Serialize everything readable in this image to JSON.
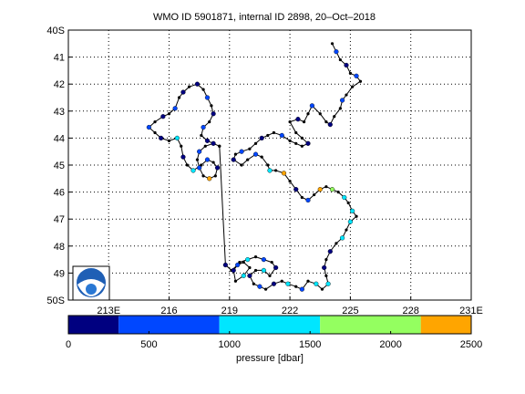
{
  "title": "WMO ID 5901871, internal ID 2898, 20–Oct–2018",
  "chart_data": {
    "type": "scatter",
    "subtype": "float-trajectory-map",
    "title": "WMO ID 5901871, internal ID 2898, 20–Oct–2018",
    "xlim": [
      211,
      231
    ],
    "ylim": [
      -50,
      -40
    ],
    "x_ticks": [
      213,
      216,
      219,
      222,
      225,
      228,
      231
    ],
    "x_tick_labels": [
      "213E",
      "216",
      "219",
      "222",
      "225",
      "228",
      "231E"
    ],
    "y_ticks": [
      -40,
      -41,
      -42,
      -43,
      -44,
      -45,
      -46,
      -47,
      -48,
      -49,
      -50
    ],
    "y_tick_labels": [
      "40S",
      "41",
      "42",
      "43",
      "44",
      "45",
      "46",
      "47",
      "48",
      "49",
      "50S"
    ],
    "grid": true,
    "logo": "noaa-logo",
    "logo_placement": "bottom-left",
    "line_color": "#000000",
    "colorbar": {
      "label": "pressure [dbar]",
      "ticks": [
        0,
        500,
        1000,
        1500,
        2000,
        2500
      ],
      "tick_labels": [
        "0",
        "500",
        "1000",
        "1500",
        "2000",
        "2500"
      ],
      "bins": [
        {
          "min": 0,
          "max": 312,
          "color": "#000080"
        },
        {
          "min": 312,
          "max": 937,
          "color": "#0047ff"
        },
        {
          "min": 937,
          "max": 1562,
          "color": "#00e6ff"
        },
        {
          "min": 1562,
          "max": 2187,
          "color": "#94ff60"
        },
        {
          "min": 2187,
          "max": 2500,
          "color": "#ffa500"
        }
      ]
    },
    "track": [
      [
        224.1,
        -40.5
      ],
      [
        224.3,
        -40.8
      ],
      [
        224.5,
        -41.1
      ],
      [
        224.8,
        -41.3
      ],
      [
        225.0,
        -41.6
      ],
      [
        225.3,
        -41.7
      ],
      [
        225.5,
        -41.9
      ],
      [
        225.1,
        -42.1
      ],
      [
        224.8,
        -42.4
      ],
      [
        224.6,
        -42.6
      ],
      [
        224.5,
        -42.9
      ],
      [
        224.2,
        -43.2
      ],
      [
        224.0,
        -43.5
      ],
      [
        223.8,
        -43.4
      ],
      [
        223.5,
        -43.1
      ],
      [
        223.1,
        -42.8
      ],
      [
        222.9,
        -43.1
      ],
      [
        222.7,
        -43.4
      ],
      [
        222.4,
        -43.3
      ],
      [
        222.0,
        -43.4
      ],
      [
        222.3,
        -43.8
      ],
      [
        222.6,
        -44.0
      ],
      [
        222.9,
        -44.2
      ],
      [
        222.6,
        -44.3
      ],
      [
        222.3,
        -44.2
      ],
      [
        222.0,
        -44.1
      ],
      [
        221.6,
        -43.9
      ],
      [
        221.2,
        -43.8
      ],
      [
        220.9,
        -43.9
      ],
      [
        220.6,
        -44.0
      ],
      [
        220.3,
        -44.2
      ],
      [
        220.0,
        -44.4
      ],
      [
        219.6,
        -44.5
      ],
      [
        219.3,
        -44.6
      ],
      [
        219.2,
        -44.8
      ],
      [
        219.6,
        -45.0
      ],
      [
        219.9,
        -44.8
      ],
      [
        220.3,
        -44.6
      ],
      [
        220.6,
        -44.7
      ],
      [
        220.9,
        -45.0
      ],
      [
        221.0,
        -45.2
      ],
      [
        221.3,
        -45.2
      ],
      [
        221.7,
        -45.3
      ],
      [
        222.0,
        -45.6
      ],
      [
        222.3,
        -45.9
      ],
      [
        222.6,
        -46.2
      ],
      [
        222.9,
        -46.3
      ],
      [
        223.2,
        -46.1
      ],
      [
        223.5,
        -45.9
      ],
      [
        223.8,
        -45.8
      ],
      [
        224.1,
        -45.9
      ],
      [
        224.4,
        -46.0
      ],
      [
        224.7,
        -46.2
      ],
      [
        224.9,
        -46.4
      ],
      [
        225.1,
        -46.7
      ],
      [
        225.3,
        -46.9
      ],
      [
        225.0,
        -47.1
      ],
      [
        224.8,
        -47.4
      ],
      [
        224.6,
        -47.7
      ],
      [
        224.3,
        -47.9
      ],
      [
        224.0,
        -48.2
      ],
      [
        223.8,
        -48.5
      ],
      [
        223.7,
        -48.8
      ],
      [
        223.8,
        -49.1
      ],
      [
        223.9,
        -49.4
      ],
      [
        223.6,
        -49.6
      ],
      [
        223.3,
        -49.4
      ],
      [
        222.9,
        -49.3
      ],
      [
        222.6,
        -49.6
      ],
      [
        222.3,
        -49.5
      ],
      [
        221.9,
        -49.4
      ],
      [
        221.6,
        -49.3
      ],
      [
        221.2,
        -49.4
      ],
      [
        220.8,
        -49.6
      ],
      [
        220.5,
        -49.5
      ],
      [
        220.2,
        -49.4
      ],
      [
        220.0,
        -49.1
      ],
      [
        220.3,
        -48.9
      ],
      [
        220.7,
        -48.9
      ],
      [
        221.0,
        -49.1
      ],
      [
        221.3,
        -48.8
      ],
      [
        221.1,
        -48.6
      ],
      [
        220.7,
        -48.5
      ],
      [
        220.3,
        -48.4
      ],
      [
        219.9,
        -48.5
      ],
      [
        219.5,
        -48.6
      ],
      [
        219.2,
        -48.9
      ],
      [
        219.3,
        -49.3
      ],
      [
        219.7,
        -49.1
      ],
      [
        220.0,
        -48.8
      ],
      [
        219.7,
        -48.6
      ],
      [
        219.4,
        -48.7
      ],
      [
        219.1,
        -48.9
      ],
      [
        218.8,
        -48.7
      ],
      [
        218.5,
        -44.3
      ],
      [
        218.2,
        -44.2
      ],
      [
        217.8,
        -44.3
      ],
      [
        217.5,
        -44.5
      ],
      [
        217.4,
        -44.8
      ],
      [
        217.5,
        -45.1
      ],
      [
        217.7,
        -45.4
      ],
      [
        218.0,
        -45.5
      ],
      [
        218.3,
        -45.4
      ],
      [
        218.4,
        -45.1
      ],
      [
        218.2,
        -44.9
      ],
      [
        217.9,
        -44.8
      ],
      [
        217.6,
        -45.0
      ],
      [
        217.2,
        -45.2
      ],
      [
        216.9,
        -45.0
      ],
      [
        216.7,
        -44.7
      ],
      [
        216.6,
        -44.3
      ],
      [
        216.4,
        -44.0
      ],
      [
        216.0,
        -44.1
      ],
      [
        215.6,
        -44.0
      ],
      [
        215.3,
        -43.8
      ],
      [
        215.0,
        -43.6
      ],
      [
        215.3,
        -43.4
      ],
      [
        215.7,
        -43.2
      ],
      [
        216.0,
        -43.1
      ],
      [
        216.3,
        -42.9
      ],
      [
        216.5,
        -42.5
      ],
      [
        216.7,
        -42.3
      ],
      [
        217.0,
        -42.1
      ],
      [
        217.4,
        -42.0
      ],
      [
        217.7,
        -42.2
      ],
      [
        217.9,
        -42.5
      ],
      [
        218.1,
        -42.8
      ],
      [
        218.2,
        -43.1
      ],
      [
        218.0,
        -43.4
      ],
      [
        217.7,
        -43.6
      ],
      [
        217.6,
        -43.9
      ],
      [
        217.9,
        -44.1
      ],
      [
        218.2,
        -44.2
      ],
      [
        218.5,
        -44.3
      ]
    ],
    "points": [
      [
        224.3,
        -40.8,
        800
      ],
      [
        224.8,
        -41.3,
        200
      ],
      [
        225.3,
        -41.7,
        600
      ],
      [
        224.6,
        -42.6,
        800
      ],
      [
        224.0,
        -43.5,
        100
      ],
      [
        223.1,
        -42.8,
        700
      ],
      [
        222.4,
        -43.3,
        200
      ],
      [
        222.9,
        -44.2,
        100
      ],
      [
        221.6,
        -43.9,
        900
      ],
      [
        220.6,
        -44.0,
        100
      ],
      [
        219.6,
        -44.5,
        700
      ],
      [
        219.2,
        -44.8,
        100
      ],
      [
        220.3,
        -44.6,
        800
      ],
      [
        221.0,
        -45.2,
        1200
      ],
      [
        221.7,
        -45.3,
        2300
      ],
      [
        222.3,
        -45.9,
        100
      ],
      [
        222.9,
        -46.3,
        800
      ],
      [
        223.5,
        -45.9,
        2300
      ],
      [
        224.1,
        -45.9,
        1800
      ],
      [
        224.7,
        -46.2,
        1200
      ],
      [
        225.1,
        -46.7,
        1300
      ],
      [
        225.0,
        -47.1,
        1200
      ],
      [
        224.6,
        -47.7,
        1300
      ],
      [
        224.0,
        -48.2,
        100
      ],
      [
        223.7,
        -48.8,
        100
      ],
      [
        223.9,
        -49.4,
        1200
      ],
      [
        223.3,
        -49.4,
        1200
      ],
      [
        222.6,
        -49.6,
        800
      ],
      [
        221.9,
        -49.4,
        1200
      ],
      [
        221.2,
        -49.4,
        100
      ],
      [
        220.5,
        -49.5,
        800
      ],
      [
        220.0,
        -49.1,
        100
      ],
      [
        220.7,
        -48.9,
        1200
      ],
      [
        221.3,
        -48.8,
        100
      ],
      [
        220.7,
        -48.5,
        700
      ],
      [
        219.9,
        -48.5,
        1200
      ],
      [
        219.2,
        -48.9,
        100
      ],
      [
        219.7,
        -49.1,
        1200
      ],
      [
        219.4,
        -48.7,
        800
      ],
      [
        218.8,
        -48.7,
        100
      ],
      [
        218.2,
        -44.2,
        100
      ],
      [
        217.5,
        -44.5,
        800
      ],
      [
        217.5,
        -45.1,
        700
      ],
      [
        218.0,
        -45.5,
        2300
      ],
      [
        218.4,
        -45.1,
        100
      ],
      [
        217.9,
        -44.8,
        800
      ],
      [
        217.2,
        -45.2,
        1200
      ],
      [
        216.7,
        -44.7,
        100
      ],
      [
        216.4,
        -44.0,
        1200
      ],
      [
        215.6,
        -44.0,
        100
      ],
      [
        215.0,
        -43.6,
        800
      ],
      [
        215.7,
        -43.2,
        100
      ],
      [
        216.3,
        -42.9,
        800
      ],
      [
        216.7,
        -42.3,
        100
      ],
      [
        217.4,
        -42.0,
        100
      ],
      [
        217.9,
        -42.5,
        800
      ],
      [
        218.2,
        -43.1,
        100
      ],
      [
        217.7,
        -43.6,
        800
      ],
      [
        217.9,
        -44.1,
        100
      ]
    ]
  }
}
